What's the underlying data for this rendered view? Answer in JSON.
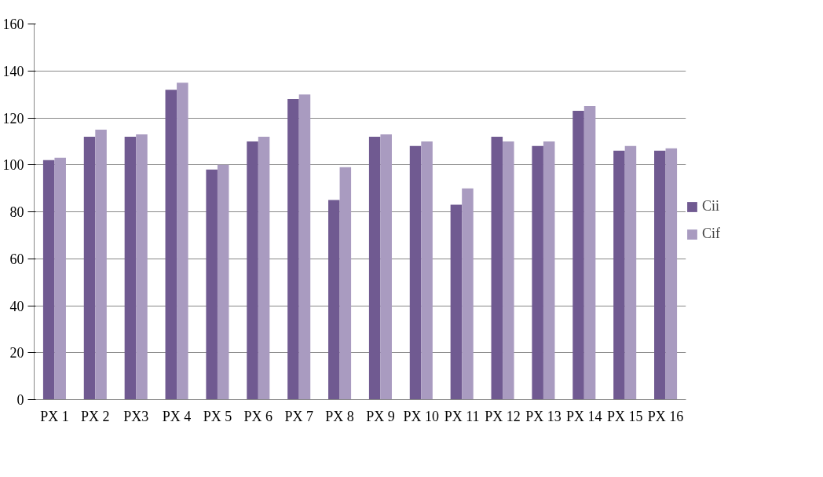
{
  "chart_data": {
    "type": "bar",
    "categories": [
      "PX 1",
      "PX 2",
      "PX3",
      "PX 4",
      "PX 5",
      "PX 6",
      "PX 7",
      "PX 8",
      "PX 9",
      "PX 10",
      "PX 11",
      "PX 12",
      "PX 13",
      "PX 14",
      "PX 15",
      "PX 16"
    ],
    "series": [
      {
        "name": "Cii",
        "color": "#705a91",
        "values": [
          102,
          112,
          112,
          132,
          98,
          110,
          128,
          85,
          112,
          108,
          83,
          112,
          108,
          123,
          106,
          106
        ]
      },
      {
        "name": "Cif",
        "color": "#a99bc0",
        "values": [
          103,
          115,
          113,
          135,
          100,
          112,
          130,
          99,
          113,
          110,
          90,
          110,
          110,
          125,
          108,
          107
        ]
      }
    ],
    "ylim": [
      0,
      160
    ],
    "yticks": [
      0,
      20,
      40,
      60,
      80,
      100,
      120,
      140,
      160
    ],
    "grid": "y",
    "legend": "right"
  }
}
